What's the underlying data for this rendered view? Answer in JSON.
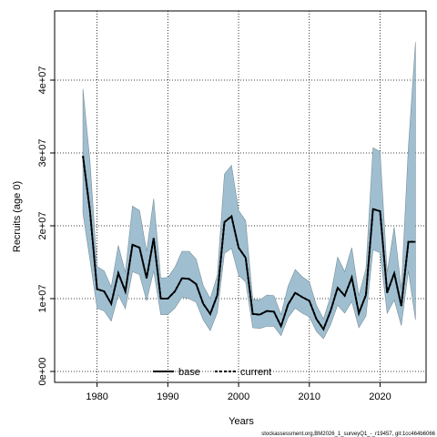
{
  "chart_data": {
    "type": "line",
    "xlabel": "Years",
    "ylabel": "Recruits (age 0)",
    "x_ticks": [
      1980,
      1990,
      2000,
      2010,
      2020
    ],
    "x_tick_labels": [
      "1980",
      "1990",
      "2000",
      "2010",
      "2020"
    ],
    "y_ticks": [
      0,
      10000000,
      20000000,
      30000000,
      40000000
    ],
    "y_tick_labels": [
      "0e+00",
      "1e+07",
      "2e+07",
      "3e+07",
      "4e+07"
    ],
    "xlim": [
      1974,
      2026.5
    ],
    "ylim": [
      -1500000,
      49500000
    ],
    "grid": true,
    "legend_position": "bottom-center",
    "x": [
      1978,
      1979,
      1980,
      1981,
      1982,
      1983,
      1984,
      1985,
      1986,
      1987,
      1988,
      1989,
      1990,
      1991,
      1992,
      1993,
      1994,
      1995,
      1996,
      1997,
      1998,
      1999,
      2000,
      2001,
      2002,
      2003,
      2004,
      2005,
      2006,
      2007,
      2008,
      2009,
      2010,
      2011,
      2012,
      2013,
      2014,
      2015,
      2016,
      2017,
      2018,
      2019,
      2020,
      2021,
      2022,
      2023,
      2024,
      2025
    ],
    "series": [
      {
        "name": "base",
        "style": "solid",
        "color": "#000000",
        "values": [
          29600000,
          22000000,
          11300000,
          11000000,
          9300000,
          13500000,
          11000000,
          17400000,
          17000000,
          12800000,
          18300000,
          10000000,
          10000000,
          11000000,
          12800000,
          12700000,
          12000000,
          9300000,
          7900000,
          10500000,
          20500000,
          21300000,
          17000000,
          15600000,
          7900000,
          7800000,
          8300000,
          8200000,
          6200000,
          9200000,
          10800000,
          10200000,
          9700000,
          7200000,
          5800000,
          8300000,
          11500000,
          10400000,
          12900000,
          8000000,
          10500000,
          22300000,
          22000000,
          10800000,
          13500000,
          9000000,
          17800000,
          17800000
        ]
      },
      {
        "name": "current",
        "style": "dashed",
        "color": "#000000",
        "values": [
          29600000,
          22000000,
          11300000,
          11000000,
          9300000,
          13500000,
          11000000,
          17400000,
          17000000,
          12800000,
          18300000,
          10000000,
          10000000,
          11000000,
          12800000,
          12700000,
          12000000,
          9300000,
          7900000,
          10500000,
          20500000,
          21300000,
          17000000,
          15600000,
          7900000,
          7800000,
          8300000,
          8200000,
          6200000,
          9200000,
          10800000,
          10200000,
          9700000,
          7200000,
          5800000,
          8300000,
          11500000,
          10400000,
          12900000,
          8000000,
          10500000,
          22300000,
          22000000,
          10800000,
          13500000,
          9000000,
          17800000,
          17800000
        ]
      }
    ],
    "interval": {
      "color": "#9fbfd1",
      "edge_color": "#7a8f9a",
      "lower": [
        21700000,
        15300000,
        8700000,
        8300000,
        6900000,
        10500000,
        8600000,
        13700000,
        13300000,
        9700000,
        13800000,
        7800000,
        7800000,
        8700000,
        10200000,
        10000000,
        9500000,
        7100000,
        5600000,
        8100000,
        16200000,
        16900000,
        13200000,
        12300000,
        6000000,
        5900000,
        6200000,
        6200000,
        4900000,
        7400000,
        8700000,
        8000000,
        7500000,
        5500000,
        4500000,
        6400000,
        9100000,
        8000000,
        9600000,
        6000000,
        7600000,
        16700000,
        16300000,
        8000000,
        9800000,
        6300000,
        13800000,
        7100000
      ],
      "upper": [
        38800000,
        28800000,
        14400000,
        13800000,
        11600000,
        17300000,
        13600000,
        22700000,
        22100000,
        16500000,
        23700000,
        12800000,
        12900000,
        14300000,
        16500000,
        16500000,
        15400000,
        11800000,
        10000000,
        13200000,
        27100000,
        28300000,
        22100000,
        20700000,
        9900000,
        9800000,
        10500000,
        10400000,
        7800000,
        11700000,
        14000000,
        13000000,
        12300000,
        9100000,
        7200000,
        10300000,
        15700000,
        13700000,
        17000000,
        10400000,
        14100000,
        30700000,
        30200000,
        13600000,
        19800000,
        11300000,
        30800000,
        45200000
      ]
    }
  },
  "legend": {
    "items": [
      {
        "label": "base"
      },
      {
        "label": "current"
      }
    ]
  },
  "footer": {
    "text": "stockassessment.org,BM2026_1_surveyQ1_-_r19457, git:1cc464b6066"
  }
}
